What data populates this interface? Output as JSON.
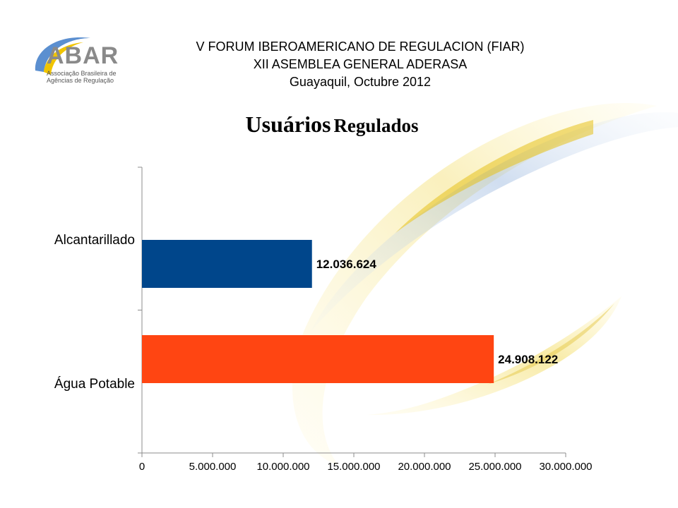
{
  "header": {
    "line1": "V FORUM IBEROAMERICANO DE REGULACION (FIAR)",
    "line2": "XII ASEMBLEA GENERAL ADERASA",
    "line3": "Guayaquil, Octubre 2012"
  },
  "logo": {
    "name": "ABAR",
    "subtitle1": "Associação Brasileira de",
    "subtitle2": "Agências de Regulação",
    "colors": {
      "text": "#8a8a8a",
      "arc_blue": "#5b8fd0",
      "arc_yellow": "#f0c400"
    }
  },
  "title": {
    "word1": "Usuários",
    "word2": "Regulados"
  },
  "chart_data": {
    "type": "bar",
    "orientation": "horizontal",
    "categories": [
      "Alcantarillado",
      "Água Potable"
    ],
    "values": [
      12036624,
      24908122
    ],
    "data_labels": [
      "12.036.624",
      "24.908.122"
    ],
    "colors": [
      "#00468b",
      "#ff4512"
    ],
    "xlim": [
      0,
      30000000
    ],
    "x_ticks": [
      0,
      5000000,
      10000000,
      15000000,
      20000000,
      25000000,
      30000000
    ],
    "x_tick_labels": [
      "0",
      "5.000.000",
      "10.000.000",
      "15.000.000",
      "20.000.000",
      "25.000.000",
      "30.000.000"
    ],
    "grid": false,
    "legend": "none",
    "title": "",
    "xlabel": "",
    "ylabel": ""
  }
}
